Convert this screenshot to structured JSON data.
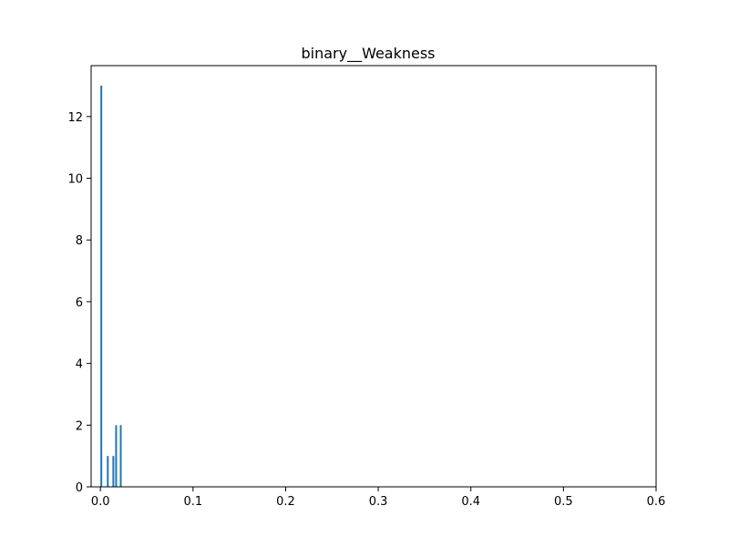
{
  "chart_data": {
    "type": "bar",
    "title": "binary__Weakness",
    "xlabel": "",
    "ylabel": "",
    "xlim": [
      -0.01,
      0.6
    ],
    "ylim": [
      0,
      13.65
    ],
    "xticks": [
      0.0,
      0.1,
      0.2,
      0.3,
      0.4,
      0.5,
      0.6
    ],
    "xtick_labels": [
      "0.0",
      "0.1",
      "0.2",
      "0.3",
      "0.4",
      "0.5",
      "0.6"
    ],
    "yticks": [
      0,
      2,
      4,
      6,
      8,
      10,
      12
    ],
    "ytick_labels": [
      "0",
      "2",
      "4",
      "6",
      "8",
      "10",
      "12"
    ],
    "grid": false,
    "bar_color": "#1f77b4",
    "bins": [
      {
        "x": 0.0,
        "value": 13
      },
      {
        "x": 0.007,
        "value": 1
      },
      {
        "x": 0.013,
        "value": 1
      },
      {
        "x": 0.016,
        "value": 2
      },
      {
        "x": 0.021,
        "value": 2
      }
    ]
  }
}
